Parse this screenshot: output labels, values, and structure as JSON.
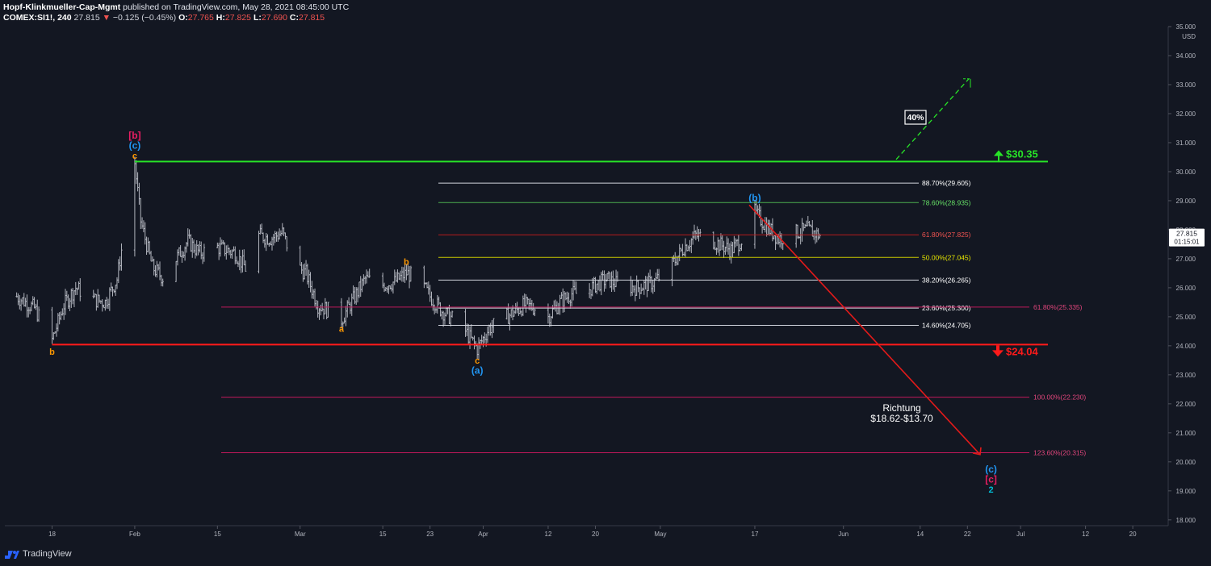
{
  "header": {
    "author": "Hopf-Klinkmueller-Cap-Mgmt",
    "published": "published on TradingView.com, May 28, 2021 08:45:00 UTC",
    "symbol": "COMEX:SI1!, 240",
    "last": "27.815",
    "change": "−0.125 (−0.45%)",
    "open_label": "O:",
    "open": "27.765",
    "high_label": "H:",
    "high": "27.825",
    "low_label": "L:",
    "low": "27.690",
    "close_label": "C:",
    "close": "27.815"
  },
  "footer": {
    "brand": "TradingView",
    "icon": "tradingview-logo-icon"
  },
  "price_axis": {
    "currency": "USD",
    "current_price": "27.815",
    "countdown": "01:15:01"
  },
  "colors": {
    "background": "#131722",
    "candles": "#b2b5be",
    "resistance": "#27e427",
    "support": "#ff1a1a",
    "arrow": "#e31a1a",
    "wave_blue": "#2196f3",
    "wave_orange": "#ff9800",
    "wave_pink": "#e91e63",
    "wave_teal": "#00bcd4"
  },
  "chart_data": {
    "type": "candlestick",
    "symbol": "COMEX:SI1!",
    "interval": "240",
    "ylim": [
      17.8,
      35.0
    ],
    "y_ticks": [
      "35.000",
      "34.000",
      "33.000",
      "32.000",
      "31.000",
      "30.000",
      "29.000",
      "28.000",
      "27.000",
      "26.000",
      "25.000",
      "24.000",
      "23.000",
      "22.000",
      "21.000",
      "20.000",
      "19.000",
      "18.000"
    ],
    "x_ticks": [
      {
        "label": "18",
        "date": "2021-01-18"
      },
      {
        "label": "Feb",
        "date": "2021-02-01"
      },
      {
        "label": "15",
        "date": "2021-02-15"
      },
      {
        "label": "Mar",
        "date": "2021-03-01"
      },
      {
        "label": "15",
        "date": "2021-03-15"
      },
      {
        "label": "23",
        "date": "2021-03-23"
      },
      {
        "label": "Apr",
        "date": "2021-04-01"
      },
      {
        "label": "12",
        "date": "2021-04-12"
      },
      {
        "label": "20",
        "date": "2021-04-20"
      },
      {
        "label": "May",
        "date": "2021-05-01"
      },
      {
        "label": "17",
        "date": "2021-05-17"
      },
      {
        "label": "Jun",
        "date": "2021-06-01"
      },
      {
        "label": "14",
        "date": "2021-06-14"
      },
      {
        "label": "22",
        "date": "2021-06-22"
      },
      {
        "label": "Jul",
        "date": "2021-07-01"
      },
      {
        "label": "12",
        "date": "2021-07-12"
      },
      {
        "label": "20",
        "date": "2021-07-20"
      }
    ],
    "price_path": [
      [
        "2021-01-12",
        25.7
      ],
      [
        "2021-01-15",
        25.3
      ],
      [
        "2021-01-18",
        24.2
      ],
      [
        "2021-01-20",
        25.4
      ],
      [
        "2021-01-22",
        26.0
      ],
      [
        "2021-01-25",
        25.6
      ],
      [
        "2021-01-27",
        25.5
      ],
      [
        "2021-01-29",
        26.3
      ],
      [
        "2021-02-01",
        30.3
      ],
      [
        "2021-02-02",
        28.3
      ],
      [
        "2021-02-04",
        26.7
      ],
      [
        "2021-02-06",
        26.3
      ],
      [
        "2021-02-08",
        27.0
      ],
      [
        "2021-02-10",
        27.6
      ],
      [
        "2021-02-12",
        27.2
      ],
      [
        "2021-02-15",
        27.4
      ],
      [
        "2021-02-18",
        27.2
      ],
      [
        "2021-02-20",
        26.6
      ],
      [
        "2021-02-22",
        27.8
      ],
      [
        "2021-02-24",
        27.7
      ],
      [
        "2021-02-26",
        27.9
      ],
      [
        "2021-02-28",
        26.8
      ],
      [
        "2021-03-02",
        26.5
      ],
      [
        "2021-03-04",
        25.4
      ],
      [
        "2021-03-06",
        25.2
      ],
      [
        "2021-03-08",
        24.9
      ],
      [
        "2021-03-10",
        25.6
      ],
      [
        "2021-03-12",
        26.3
      ],
      [
        "2021-03-15",
        26.1
      ],
      [
        "2021-03-17",
        26.2
      ],
      [
        "2021-03-19",
        26.5
      ],
      [
        "2021-03-21",
        26.3
      ],
      [
        "2021-03-23",
        25.7
      ],
      [
        "2021-03-25",
        25.2
      ],
      [
        "2021-03-27",
        24.9
      ],
      [
        "2021-03-29",
        24.5
      ],
      [
        "2021-03-31",
        23.9
      ],
      [
        "2021-04-02",
        24.6
      ],
      [
        "2021-04-05",
        25.0
      ],
      [
        "2021-04-08",
        25.4
      ],
      [
        "2021-04-10",
        25.3
      ],
      [
        "2021-04-12",
        25.0
      ],
      [
        "2021-04-14",
        25.5
      ],
      [
        "2021-04-16",
        25.8
      ],
      [
        "2021-04-18",
        25.8
      ],
      [
        "2021-04-20",
        26.1
      ],
      [
        "2021-04-22",
        26.3
      ],
      [
        "2021-04-24",
        26.1
      ],
      [
        "2021-04-27",
        26.0
      ],
      [
        "2021-04-30",
        26.2
      ],
      [
        "2021-05-03",
        26.8
      ],
      [
        "2021-05-05",
        27.4
      ],
      [
        "2021-05-07",
        27.8
      ],
      [
        "2021-05-09",
        27.7
      ],
      [
        "2021-05-11",
        27.5
      ],
      [
        "2021-05-13",
        27.3
      ],
      [
        "2021-05-15",
        27.7
      ],
      [
        "2021-05-17",
        28.6
      ],
      [
        "2021-05-19",
        28.1
      ],
      [
        "2021-05-21",
        27.7
      ],
      [
        "2021-05-24",
        27.9
      ],
      [
        "2021-05-26",
        28.0
      ],
      [
        "2021-05-28",
        27.8
      ]
    ],
    "horizontal_levels": [
      {
        "label": "$30.35",
        "price": 30.35,
        "color": "#27e427",
        "arrow": "up"
      },
      {
        "label": "$24.04",
        "price": 24.04,
        "color": "#ff1a1a",
        "arrow": "down"
      }
    ],
    "fib_retracement": [
      {
        "label": "88.70%(29.605)",
        "price": 29.605,
        "color": "#d1d4dc"
      },
      {
        "label": "78.60%(28.935)",
        "price": 28.935,
        "color": "#4caf50"
      },
      {
        "label": "61.80%(27.825)",
        "price": 27.825,
        "color": "#b71c1c"
      },
      {
        "label": "50.00%(27.045)",
        "price": 27.045,
        "color": "#c9c900"
      },
      {
        "label": "38.20%(26.265)",
        "price": 26.265,
        "color": "#d1d4dc"
      },
      {
        "label": "23.60%(25.300)",
        "price": 25.3,
        "color": "#d1d4dc"
      },
      {
        "label": "14.60%(24.705)",
        "price": 24.705,
        "color": "#d1d4dc"
      }
    ],
    "fib_extension": [
      {
        "label": "61.80%(25.335)",
        "price": 25.335,
        "color": "#c2185b"
      },
      {
        "label": "100.00%(22.230)",
        "price": 22.23,
        "color": "#c2185b"
      },
      {
        "label": "123.60%(20.315)",
        "price": 20.315,
        "color": "#c2185b"
      }
    ],
    "annotations": {
      "percent_box": "40%",
      "target_title": "Richtung",
      "target_range": "$18.62-$13.70"
    },
    "wave_labels": [
      {
        "text": "[b]",
        "date": "2021-02-01",
        "price": 31.25,
        "color": "#e91e63"
      },
      {
        "text": "(c)",
        "date": "2021-02-01",
        "price": 30.9,
        "color": "#2196f3"
      },
      {
        "text": "c",
        "date": "2021-02-01",
        "price": 30.55,
        "color": "#ff9800"
      },
      {
        "text": "b",
        "date": "2021-01-18",
        "price": 23.8,
        "color": "#ff9800"
      },
      {
        "text": "a",
        "date": "2021-03-08",
        "price": 24.6,
        "color": "#ff9800"
      },
      {
        "text": "b",
        "date": "2021-03-19",
        "price": 26.9,
        "color": "#ff9800"
      },
      {
        "text": "c",
        "date": "2021-03-31",
        "price": 23.5,
        "color": "#ff9800"
      },
      {
        "text": "(a)",
        "date": "2021-03-31",
        "price": 23.15,
        "color": "#2196f3"
      },
      {
        "text": "(b)",
        "date": "2021-05-17",
        "price": 29.1,
        "color": "#2196f3"
      },
      {
        "text": "(c)",
        "date": "2021-06-26",
        "price": 19.75,
        "color": "#2196f3"
      },
      {
        "text": "[c]",
        "date": "2021-06-26",
        "price": 19.4,
        "color": "#e91e63"
      },
      {
        "text": "2",
        "date": "2021-06-26",
        "price": 19.05,
        "color": "#00bcd4"
      }
    ]
  }
}
